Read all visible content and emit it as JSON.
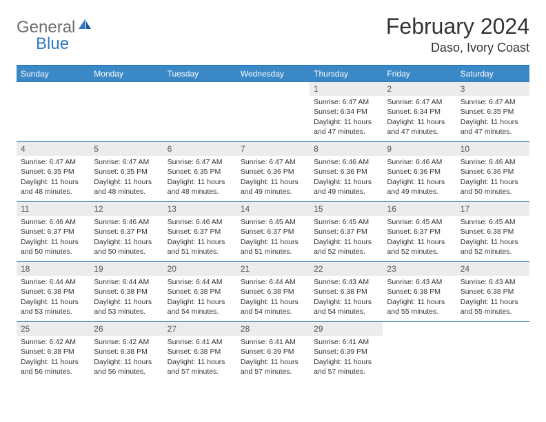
{
  "logo": {
    "general": "General",
    "blue": "Blue"
  },
  "title": "February 2024",
  "location": "Daso, Ivory Coast",
  "colors": {
    "header_bg": "#3b88c7",
    "border": "#2f7bbf",
    "daynum_bg": "#ececec",
    "text": "#333333"
  },
  "dow": [
    "Sunday",
    "Monday",
    "Tuesday",
    "Wednesday",
    "Thursday",
    "Friday",
    "Saturday"
  ],
  "weeks": [
    [
      null,
      null,
      null,
      null,
      {
        "n": "1",
        "sr": "6:47 AM",
        "ss": "6:34 PM",
        "dl": "11 hours and 47 minutes."
      },
      {
        "n": "2",
        "sr": "6:47 AM",
        "ss": "6:34 PM",
        "dl": "11 hours and 47 minutes."
      },
      {
        "n": "3",
        "sr": "6:47 AM",
        "ss": "6:35 PM",
        "dl": "11 hours and 47 minutes."
      }
    ],
    [
      {
        "n": "4",
        "sr": "6:47 AM",
        "ss": "6:35 PM",
        "dl": "11 hours and 48 minutes."
      },
      {
        "n": "5",
        "sr": "6:47 AM",
        "ss": "6:35 PM",
        "dl": "11 hours and 48 minutes."
      },
      {
        "n": "6",
        "sr": "6:47 AM",
        "ss": "6:35 PM",
        "dl": "11 hours and 48 minutes."
      },
      {
        "n": "7",
        "sr": "6:47 AM",
        "ss": "6:36 PM",
        "dl": "11 hours and 49 minutes."
      },
      {
        "n": "8",
        "sr": "6:46 AM",
        "ss": "6:36 PM",
        "dl": "11 hours and 49 minutes."
      },
      {
        "n": "9",
        "sr": "6:46 AM",
        "ss": "6:36 PM",
        "dl": "11 hours and 49 minutes."
      },
      {
        "n": "10",
        "sr": "6:46 AM",
        "ss": "6:36 PM",
        "dl": "11 hours and 50 minutes."
      }
    ],
    [
      {
        "n": "11",
        "sr": "6:46 AM",
        "ss": "6:37 PM",
        "dl": "11 hours and 50 minutes."
      },
      {
        "n": "12",
        "sr": "6:46 AM",
        "ss": "6:37 PM",
        "dl": "11 hours and 50 minutes."
      },
      {
        "n": "13",
        "sr": "6:46 AM",
        "ss": "6:37 PM",
        "dl": "11 hours and 51 minutes."
      },
      {
        "n": "14",
        "sr": "6:45 AM",
        "ss": "6:37 PM",
        "dl": "11 hours and 51 minutes."
      },
      {
        "n": "15",
        "sr": "6:45 AM",
        "ss": "6:37 PM",
        "dl": "11 hours and 52 minutes."
      },
      {
        "n": "16",
        "sr": "6:45 AM",
        "ss": "6:37 PM",
        "dl": "11 hours and 52 minutes."
      },
      {
        "n": "17",
        "sr": "6:45 AM",
        "ss": "6:38 PM",
        "dl": "11 hours and 52 minutes."
      }
    ],
    [
      {
        "n": "18",
        "sr": "6:44 AM",
        "ss": "6:38 PM",
        "dl": "11 hours and 53 minutes."
      },
      {
        "n": "19",
        "sr": "6:44 AM",
        "ss": "6:38 PM",
        "dl": "11 hours and 53 minutes."
      },
      {
        "n": "20",
        "sr": "6:44 AM",
        "ss": "6:38 PM",
        "dl": "11 hours and 54 minutes."
      },
      {
        "n": "21",
        "sr": "6:44 AM",
        "ss": "6:38 PM",
        "dl": "11 hours and 54 minutes."
      },
      {
        "n": "22",
        "sr": "6:43 AM",
        "ss": "6:38 PM",
        "dl": "11 hours and 54 minutes."
      },
      {
        "n": "23",
        "sr": "6:43 AM",
        "ss": "6:38 PM",
        "dl": "11 hours and 55 minutes."
      },
      {
        "n": "24",
        "sr": "6:43 AM",
        "ss": "6:38 PM",
        "dl": "11 hours and 55 minutes."
      }
    ],
    [
      {
        "n": "25",
        "sr": "6:42 AM",
        "ss": "6:38 PM",
        "dl": "11 hours and 56 minutes."
      },
      {
        "n": "26",
        "sr": "6:42 AM",
        "ss": "6:38 PM",
        "dl": "11 hours and 56 minutes."
      },
      {
        "n": "27",
        "sr": "6:41 AM",
        "ss": "6:38 PM",
        "dl": "11 hours and 57 minutes."
      },
      {
        "n": "28",
        "sr": "6:41 AM",
        "ss": "6:39 PM",
        "dl": "11 hours and 57 minutes."
      },
      {
        "n": "29",
        "sr": "6:41 AM",
        "ss": "6:39 PM",
        "dl": "11 hours and 57 minutes."
      },
      null,
      null
    ]
  ],
  "labels": {
    "sunrise": "Sunrise:",
    "sunset": "Sunset:",
    "daylight": "Daylight:"
  }
}
